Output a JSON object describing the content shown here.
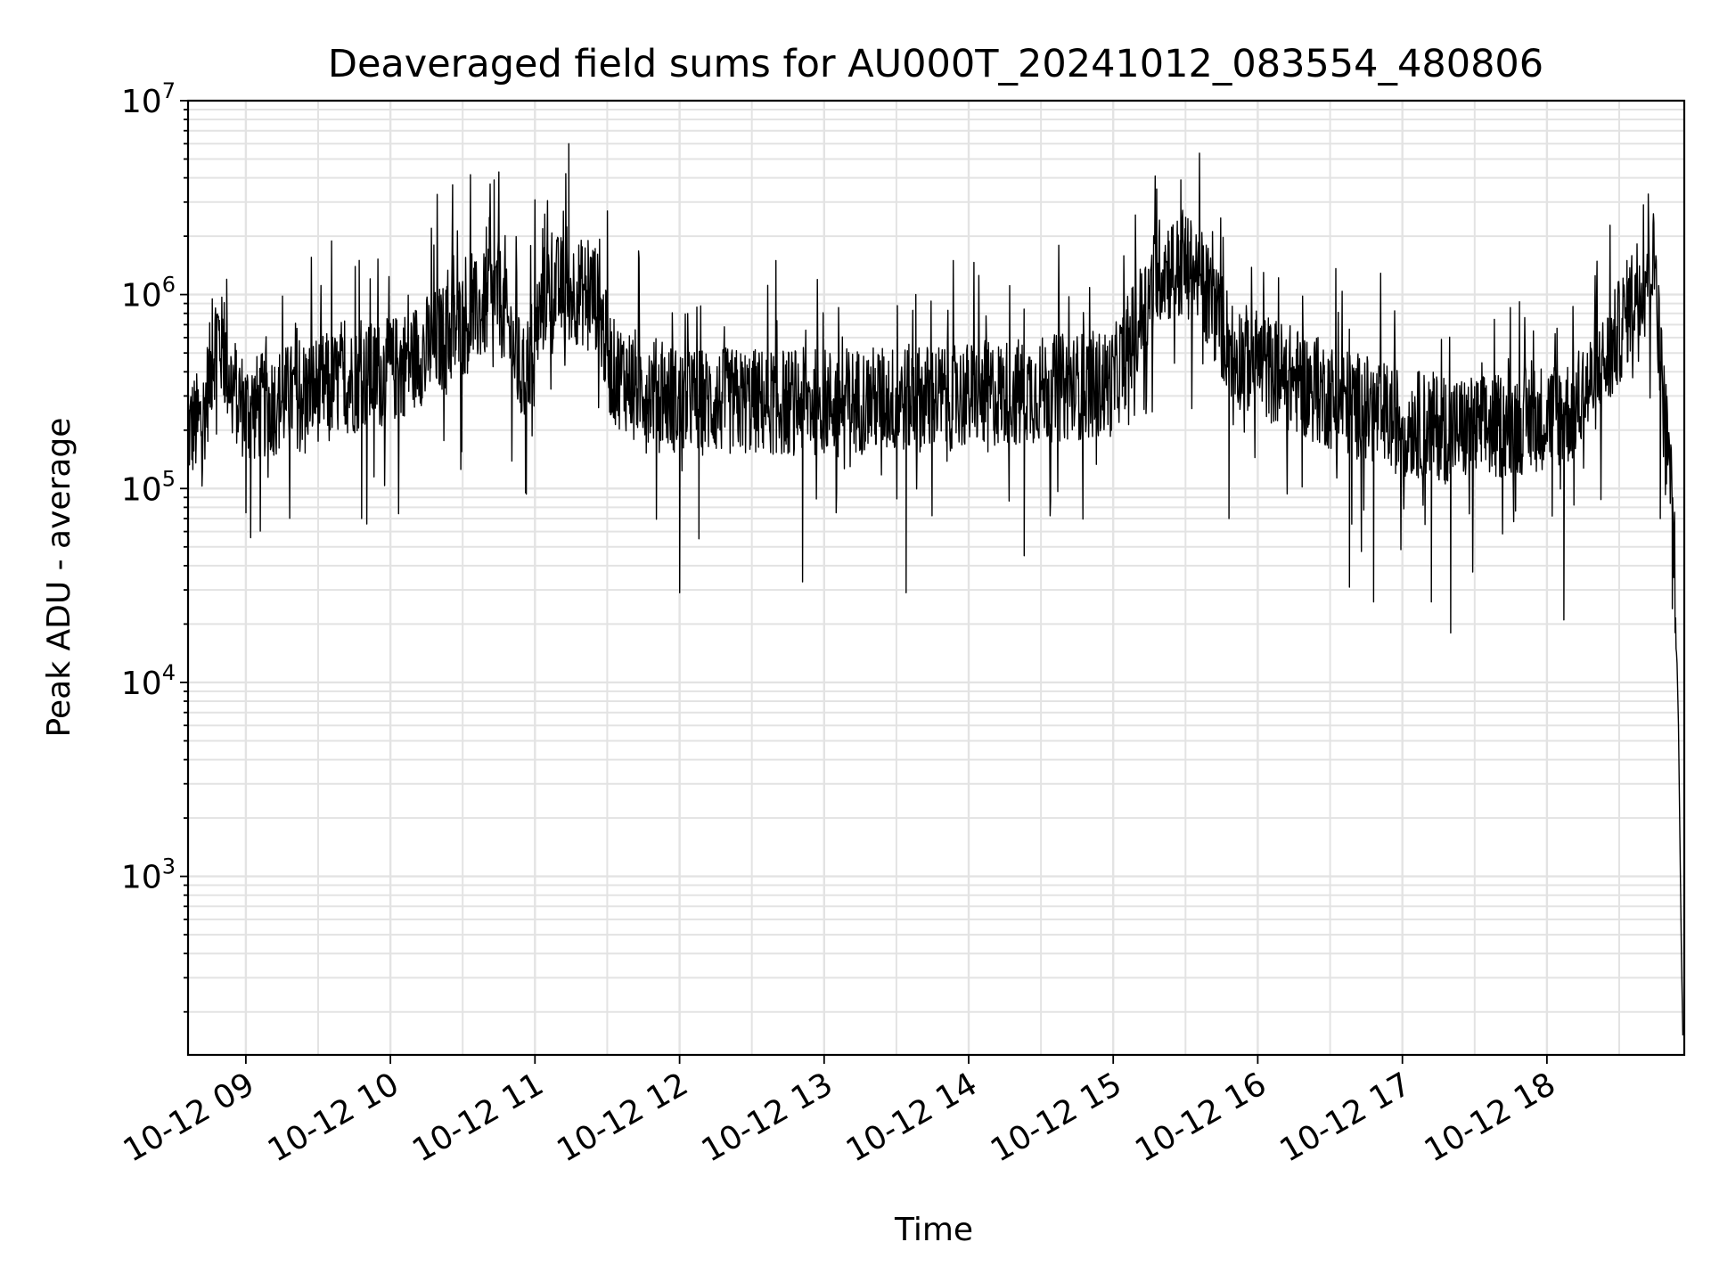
{
  "chart_data": {
    "type": "line",
    "title": "Deaveraged field sums for AU000T_20241012_083554_480806",
    "xlabel": "Time",
    "ylabel": "Peak ADU - average",
    "yscale": "log",
    "grid": true,
    "grid_minor": true,
    "xlim": [
      "2024-10-12T08:36",
      "2024-10-12T18:57"
    ],
    "ylim": [
      120,
      10000000
    ],
    "x_ticks": [
      {
        "label": "10-12 09",
        "value": "2024-10-12T09:00"
      },
      {
        "label": "10-12 10",
        "value": "2024-10-12T10:00"
      },
      {
        "label": "10-12 11",
        "value": "2024-10-12T11:00"
      },
      {
        "label": "10-12 12",
        "value": "2024-10-12T12:00"
      },
      {
        "label": "10-12 13",
        "value": "2024-10-12T13:00"
      },
      {
        "label": "10-12 14",
        "value": "2024-10-12T14:00"
      },
      {
        "label": "10-12 15",
        "value": "2024-10-12T15:00"
      },
      {
        "label": "10-12 16",
        "value": "2024-10-12T16:00"
      },
      {
        "label": "10-12 17",
        "value": "2024-10-12T17:00"
      },
      {
        "label": "10-12 18",
        "value": "2024-10-12T18:00"
      }
    ],
    "y_ticks": [
      {
        "base": "10",
        "exp": "3",
        "value": 1000
      },
      {
        "base": "10",
        "exp": "4",
        "value": 10000
      },
      {
        "base": "10",
        "exp": "5",
        "value": 100000
      },
      {
        "base": "10",
        "exp": "6",
        "value": 1000000
      },
      {
        "base": "10",
        "exp": "7",
        "value": 10000000
      }
    ],
    "series": [
      {
        "color": "#000000",
        "trend": [
          {
            "t": "2024-10-12T08:36",
            "y": 200000
          },
          {
            "t": "2024-10-12T08:42",
            "y": 220000
          },
          {
            "t": "2024-10-12T08:48",
            "y": 650000
          },
          {
            "t": "2024-10-12T08:54",
            "y": 350000
          },
          {
            "t": "2024-10-12T09:00",
            "y": 250000
          },
          {
            "t": "2024-10-12T09:30",
            "y": 330000
          },
          {
            "t": "2024-10-12T10:00",
            "y": 400000
          },
          {
            "t": "2024-10-12T10:30",
            "y": 700000
          },
          {
            "t": "2024-10-12T10:45",
            "y": 1000000
          },
          {
            "t": "2024-10-12T10:55",
            "y": 350000
          },
          {
            "t": "2024-10-12T11:05",
            "y": 1100000
          },
          {
            "t": "2024-10-12T11:25",
            "y": 1000000
          },
          {
            "t": "2024-10-12T11:32",
            "y": 400000
          },
          {
            "t": "2024-10-12T12:00",
            "y": 280000
          },
          {
            "t": "2024-10-12T13:00",
            "y": 280000
          },
          {
            "t": "2024-10-12T14:00",
            "y": 300000
          },
          {
            "t": "2024-10-12T15:00",
            "y": 350000
          },
          {
            "t": "2024-10-12T15:20",
            "y": 1400000
          },
          {
            "t": "2024-10-12T15:35",
            "y": 1300000
          },
          {
            "t": "2024-10-12T15:50",
            "y": 500000
          },
          {
            "t": "2024-10-12T16:30",
            "y": 300000
          },
          {
            "t": "2024-10-12T17:00",
            "y": 220000
          },
          {
            "t": "2024-10-12T17:30",
            "y": 200000
          },
          {
            "t": "2024-10-12T18:10",
            "y": 250000
          },
          {
            "t": "2024-10-12T18:25",
            "y": 450000
          },
          {
            "t": "2024-10-12T18:40",
            "y": 1300000
          },
          {
            "t": "2024-10-12T18:45",
            "y": 1500000
          },
          {
            "t": "2024-10-12T18:48",
            "y": 300000
          },
          {
            "t": "2024-10-12T18:52",
            "y": 100000
          },
          {
            "t": "2024-10-12T18:54",
            "y": 10000
          },
          {
            "t": "2024-10-12T18:55",
            "y": 6000
          },
          {
            "t": "2024-10-12T18:56",
            "y": 150
          }
        ],
        "spikes": [
          {
            "t": "2024-10-12T08:46",
            "y": 950000
          },
          {
            "t": "2024-10-12T08:52",
            "y": 1200000
          },
          {
            "t": "2024-10-12T09:00",
            "y": 75000
          },
          {
            "t": "2024-10-12T09:47",
            "y": 1500000
          },
          {
            "t": "2024-10-12T09:48",
            "y": 70000
          },
          {
            "t": "2024-10-12T10:18",
            "y": 1800000
          },
          {
            "t": "2024-10-12T10:41",
            "y": 2500000
          },
          {
            "t": "2024-10-12T10:43",
            "y": 3900000
          },
          {
            "t": "2024-10-12T10:56",
            "y": 95000
          },
          {
            "t": "2024-10-12T11:04",
            "y": 2600000
          },
          {
            "t": "2024-10-12T11:14",
            "y": 6000000
          },
          {
            "t": "2024-10-12T11:22",
            "y": 1900000
          },
          {
            "t": "2024-10-12T11:30",
            "y": 2700000
          },
          {
            "t": "2024-10-12T12:00",
            "y": 29000
          },
          {
            "t": "2024-10-12T12:08",
            "y": 55000
          },
          {
            "t": "2024-10-12T12:51",
            "y": 33000
          },
          {
            "t": "2024-10-12T13:38",
            "y": 1000000
          },
          {
            "t": "2024-10-12T13:34",
            "y": 29000
          },
          {
            "t": "2024-10-12T14:23",
            "y": 45000
          },
          {
            "t": "2024-10-12T15:18",
            "y": 3500000
          },
          {
            "t": "2024-10-12T15:28",
            "y": 3900000
          },
          {
            "t": "2024-10-12T15:30",
            "y": 2500000
          },
          {
            "t": "2024-10-12T15:48",
            "y": 70000
          },
          {
            "t": "2024-10-12T16:38",
            "y": 31000
          },
          {
            "t": "2024-10-12T16:48",
            "y": 26000
          },
          {
            "t": "2024-10-12T17:12",
            "y": 26000
          },
          {
            "t": "2024-10-12T17:20",
            "y": 18000
          },
          {
            "t": "2024-10-12T18:07",
            "y": 21000
          },
          {
            "t": "2024-10-12T18:40",
            "y": 2900000
          },
          {
            "t": "2024-10-12T18:42",
            "y": 3300000
          },
          {
            "t": "2024-10-12T18:44",
            "y": 2300000
          },
          {
            "t": "2024-10-12T18:47",
            "y": 70000
          },
          {
            "t": "2024-10-12T18:52",
            "y": 24000
          }
        ]
      }
    ]
  }
}
